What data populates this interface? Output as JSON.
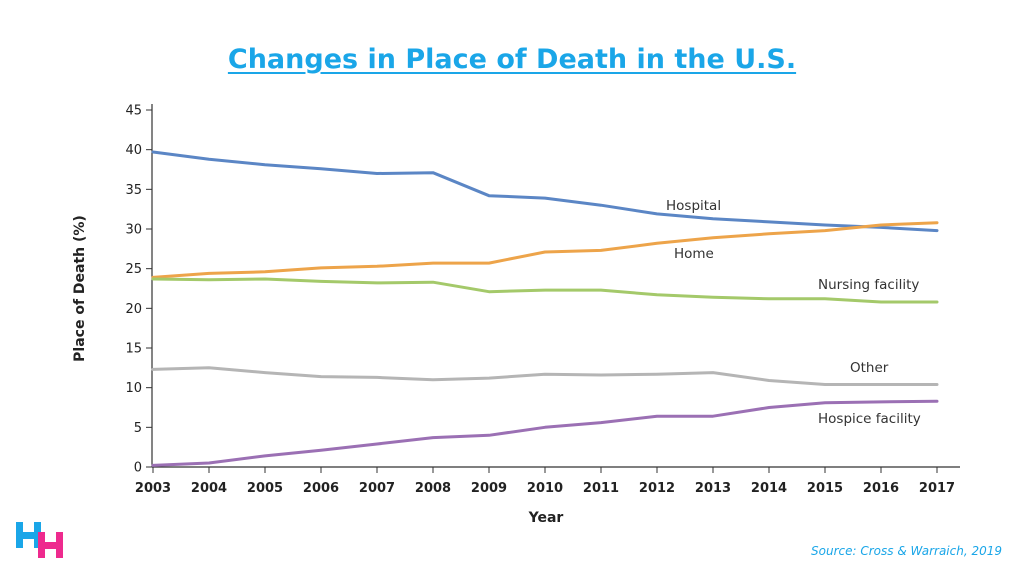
{
  "header": {
    "title": "Changes in Place of Death in the U.S."
  },
  "footer": {
    "source": "Source: Cross & Warraich, 2019"
  },
  "logo": {
    "icon": "hh-logo-icon",
    "colors": [
      "#1aa6e8",
      "#ee2a8e"
    ]
  },
  "chart_data": {
    "type": "line",
    "xlabel": "Year",
    "ylabel": "Place of Death (%)",
    "ylim": [
      0,
      45
    ],
    "yticks": [
      0,
      5,
      10,
      15,
      20,
      25,
      30,
      35,
      40,
      45
    ],
    "x": [
      2003,
      2004,
      2005,
      2006,
      2007,
      2008,
      2009,
      2010,
      2011,
      2012,
      2013,
      2014,
      2015,
      2016,
      2017
    ],
    "grid": false,
    "legend": "inline labels",
    "series": [
      {
        "name": "Hospital",
        "color": "#5b86c5",
        "values": [
          39.7,
          38.8,
          38.1,
          37.6,
          37.0,
          37.1,
          34.2,
          33.9,
          33.0,
          31.9,
          31.3,
          30.9,
          30.5,
          30.2,
          29.8
        ]
      },
      {
        "name": "Home",
        "color": "#eda44a",
        "values": [
          23.9,
          24.4,
          24.6,
          25.1,
          25.3,
          25.7,
          25.7,
          27.1,
          27.3,
          28.2,
          28.9,
          29.4,
          29.8,
          30.5,
          30.8
        ]
      },
      {
        "name": "Nursing facility",
        "color": "#a4c96a",
        "values": [
          23.7,
          23.6,
          23.7,
          23.4,
          23.2,
          23.3,
          22.1,
          22.3,
          22.3,
          21.7,
          21.4,
          21.2,
          21.2,
          20.8,
          20.8
        ]
      },
      {
        "name": "Other",
        "color": "#b5b5b5",
        "values": [
          12.3,
          12.5,
          11.9,
          11.4,
          11.3,
          11.0,
          11.2,
          11.7,
          11.6,
          11.7,
          11.9,
          10.9,
          10.4,
          10.4,
          10.4
        ]
      },
      {
        "name": "Hospice facility",
        "color": "#9b70b4",
        "values": [
          0.2,
          0.5,
          1.4,
          2.1,
          2.9,
          3.7,
          4.0,
          5.0,
          5.6,
          6.4,
          6.4,
          7.5,
          8.1,
          8.2,
          8.3
        ]
      }
    ]
  }
}
